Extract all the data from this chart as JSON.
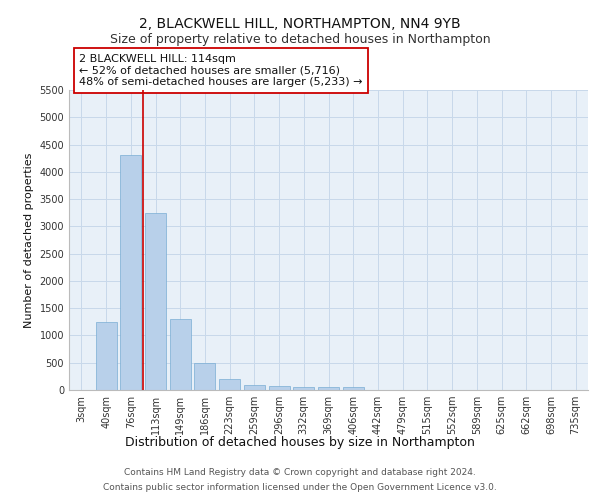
{
  "title": "2, BLACKWELL HILL, NORTHAMPTON, NN4 9YB",
  "subtitle": "Size of property relative to detached houses in Northampton",
  "xlabel": "Distribution of detached houses by size in Northampton",
  "ylabel": "Number of detached properties",
  "categories": [
    "3sqm",
    "40sqm",
    "76sqm",
    "113sqm",
    "149sqm",
    "186sqm",
    "223sqm",
    "259sqm",
    "296sqm",
    "332sqm",
    "369sqm",
    "406sqm",
    "442sqm",
    "479sqm",
    "515sqm",
    "552sqm",
    "589sqm",
    "625sqm",
    "662sqm",
    "698sqm",
    "735sqm"
  ],
  "values": [
    0,
    1250,
    4300,
    3250,
    1300,
    500,
    200,
    100,
    80,
    60,
    50,
    50,
    0,
    0,
    0,
    0,
    0,
    0,
    0,
    0,
    0
  ],
  "bar_color": "#b8d0ea",
  "bar_edge_color": "#7aadd4",
  "grid_color": "#c8d8ea",
  "background_color": "#e8f0f8",
  "vline_color": "#cc0000",
  "annotation_line1": "2 BLACKWELL HILL: 114sqm",
  "annotation_line2": "← 52% of detached houses are smaller (5,716)",
  "annotation_line3": "48% of semi-detached houses are larger (5,233) →",
  "annotation_box_color": "#cc0000",
  "ylim": [
    0,
    5500
  ],
  "yticks": [
    0,
    500,
    1000,
    1500,
    2000,
    2500,
    3000,
    3500,
    4000,
    4500,
    5000,
    5500
  ],
  "footer_line1": "Contains HM Land Registry data © Crown copyright and database right 2024.",
  "footer_line2": "Contains public sector information licensed under the Open Government Licence v3.0.",
  "title_fontsize": 10,
  "subtitle_fontsize": 9,
  "xlabel_fontsize": 9,
  "ylabel_fontsize": 8,
  "tick_fontsize": 7,
  "annotation_fontsize": 8,
  "footer_fontsize": 6.5
}
